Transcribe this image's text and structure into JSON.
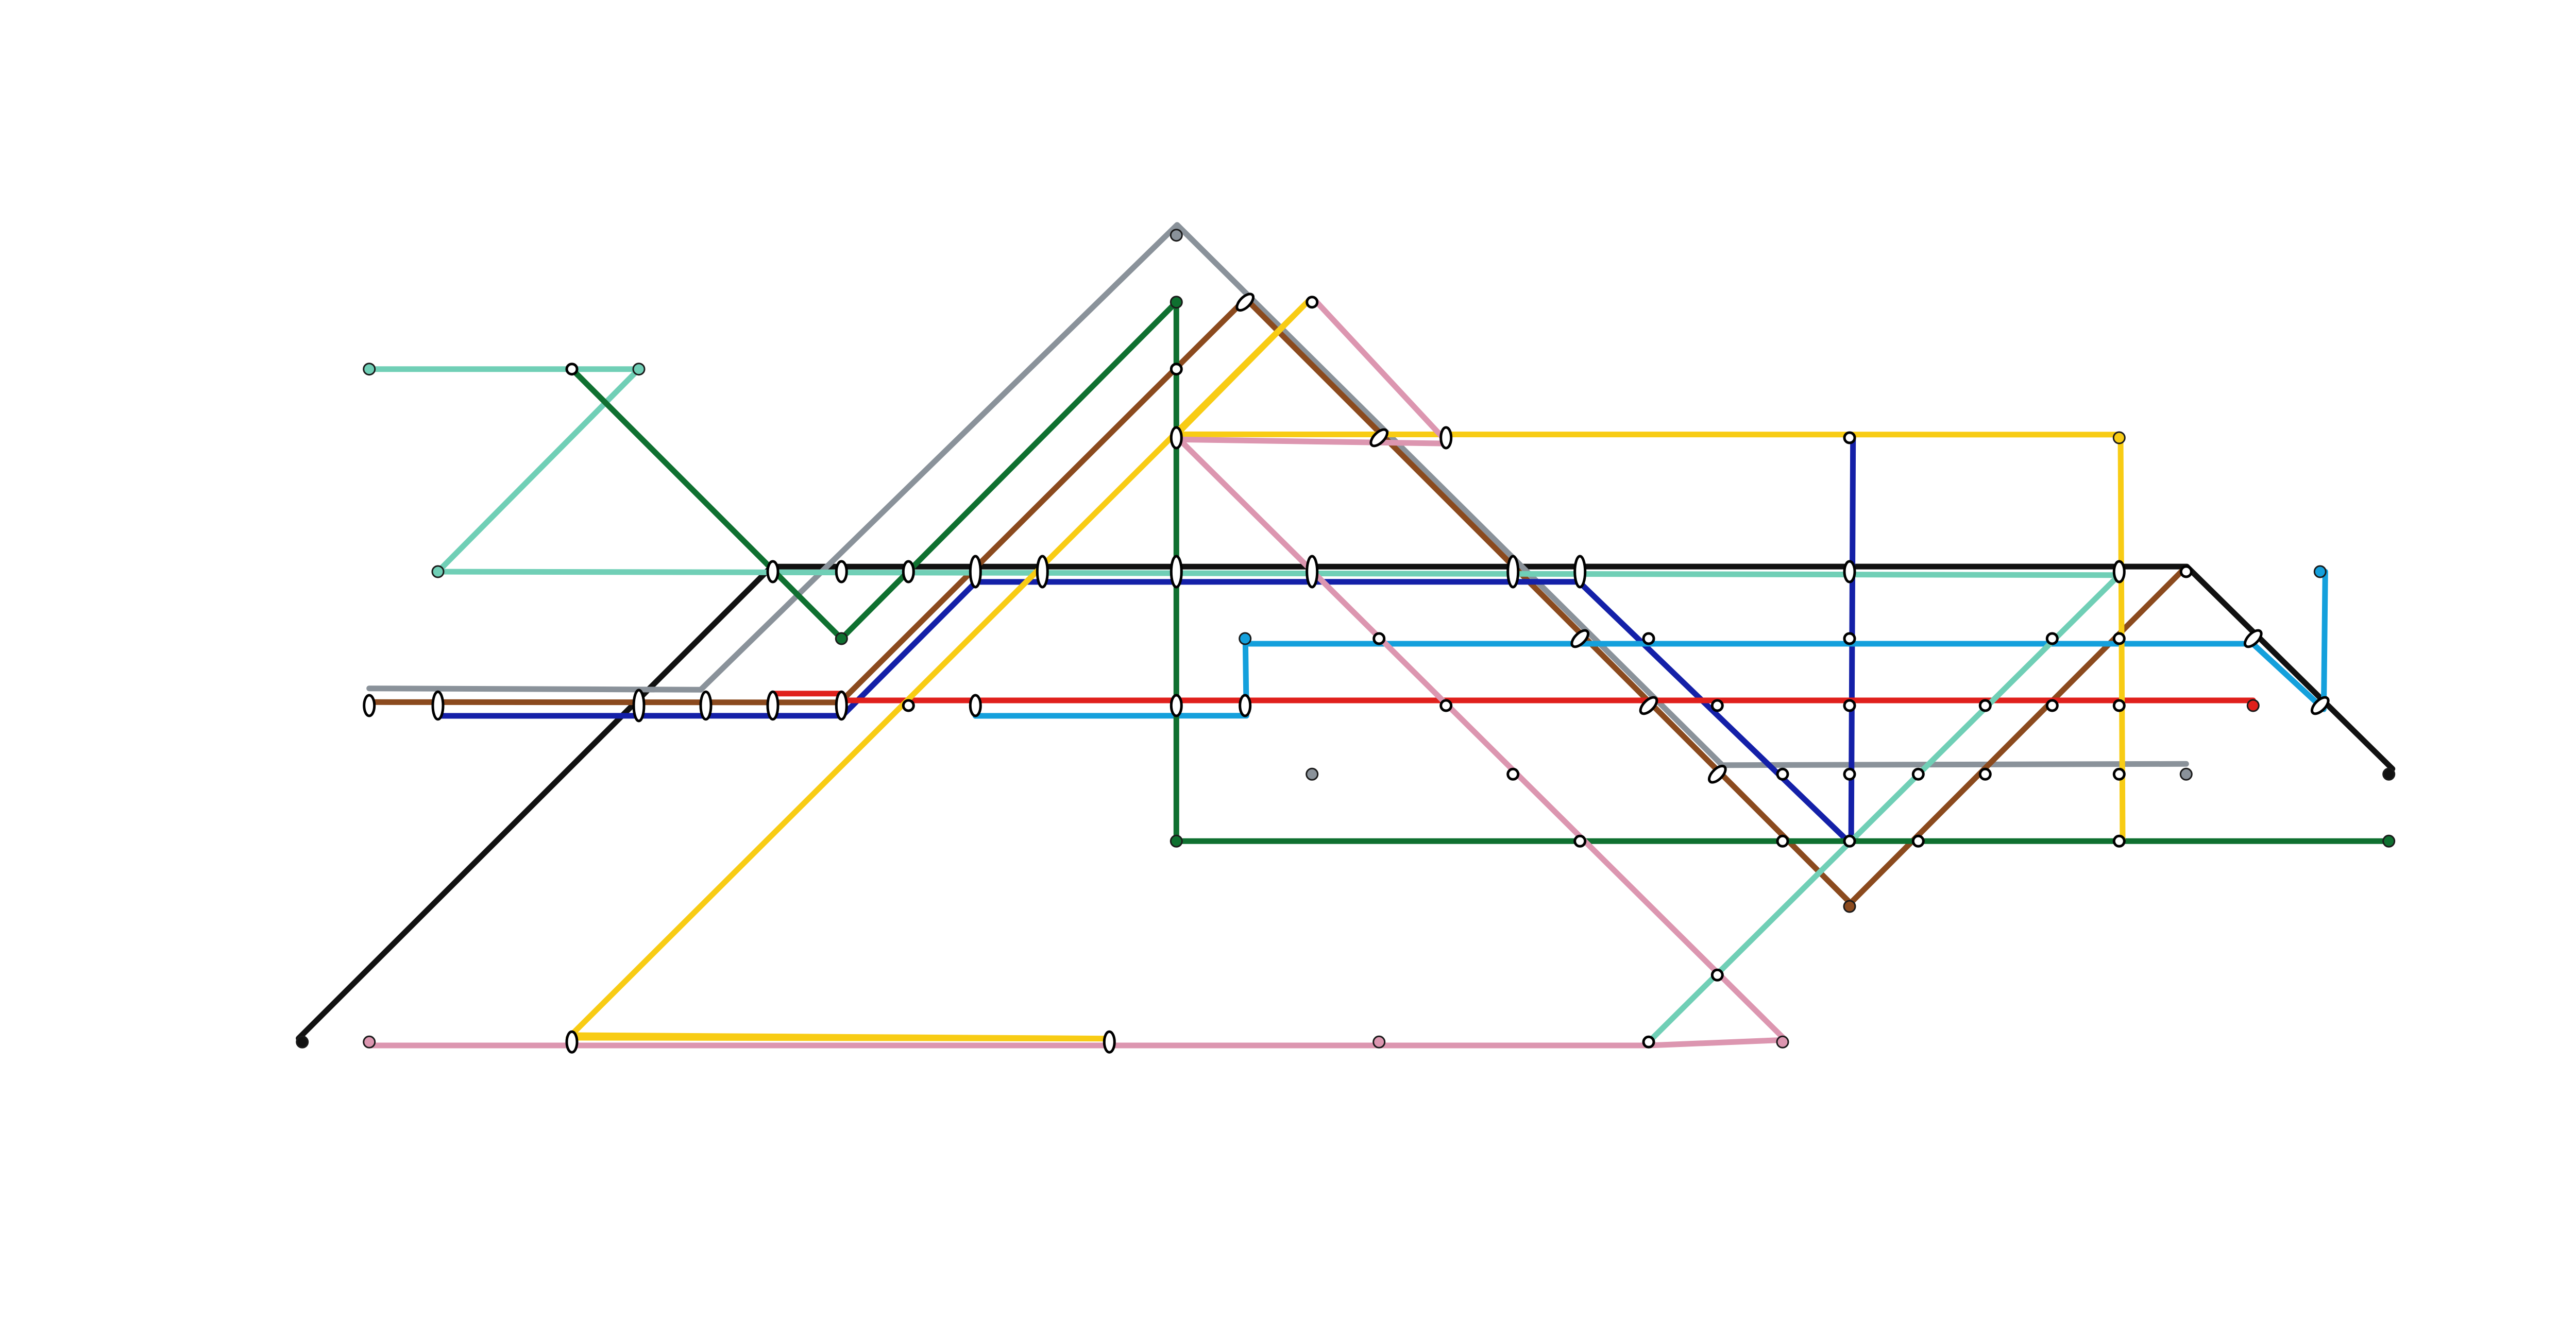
{
  "lines": [
    {
      "id": "black",
      "color": "#111111"
    },
    {
      "id": "gray",
      "color": "#8a929a"
    },
    {
      "id": "brown",
      "color": "#8b4a1e"
    },
    {
      "id": "navy",
      "color": "#1420a8"
    },
    {
      "id": "red",
      "color": "#e0201c"
    },
    {
      "id": "sky",
      "color": "#14a0dc"
    },
    {
      "id": "teal",
      "color": "#70cfb6"
    },
    {
      "id": "darkgreen",
      "color": "#0f7030"
    },
    {
      "id": "yellow",
      "color": "#f8cc14"
    },
    {
      "id": "pink",
      "color": "#dc96b0"
    }
  ]
}
